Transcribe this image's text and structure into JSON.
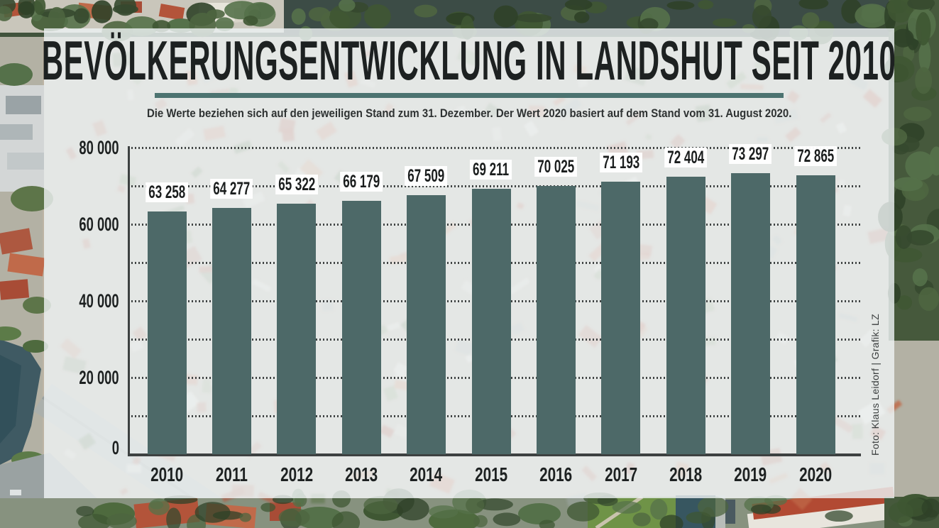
{
  "header": {
    "title": "BEVÖLKERUNGSENTWICKLUNG IN LANDSHUT SEIT 2010",
    "subtitle": "Die Werte beziehen sich auf den jeweiligen Stand zum 31. Dezember. Der Wert 2020 basiert auf dem Stand vom 31. August 2020."
  },
  "credit": "Foto: Klaus Leidorf | Grafik: LZ",
  "colors": {
    "bar": "#4d6968",
    "title_rule": "#4d7370",
    "text": "#1d2121",
    "axis": "#3d4141",
    "grid_dots": "#3f4343",
    "panel_overlay": "rgba(237,242,243,0.82)",
    "value_label_bg": "#ffffff"
  },
  "chart_data": {
    "type": "bar",
    "title": "Bevölkerungsentwicklung in Landshut seit 2010",
    "subtitle": "Die Werte beziehen sich auf den jeweiligen Stand zum 31. Dezember. Der Wert 2020 basiert auf dem Stand vom 31. August 2020.",
    "categories": [
      "2010",
      "2011",
      "2012",
      "2013",
      "2014",
      "2015",
      "2016",
      "2017",
      "2018",
      "2019",
      "2020"
    ],
    "values": [
      63258,
      64277,
      65322,
      66179,
      67509,
      69211,
      70025,
      71193,
      72404,
      73297,
      72865
    ],
    "value_labels": [
      "63 258",
      "64 277",
      "65 322",
      "66 179",
      "67 509",
      "69 211",
      "70 025",
      "71 193",
      "72 404",
      "73 297",
      "72 865"
    ],
    "xlabel": "",
    "ylabel": "",
    "ylim": [
      0,
      80000
    ],
    "ytick_step_gridlines": 10000,
    "yticks": [
      {
        "value": 0,
        "label": "0"
      },
      {
        "value": 20000,
        "label": "20 000"
      },
      {
        "value": 40000,
        "label": "40 000"
      },
      {
        "value": 60000,
        "label": "60 000"
      },
      {
        "value": 80000,
        "label": "80 000"
      }
    ],
    "grid": "horizontal dotted lines every 10 000",
    "legend": "none",
    "bar_color": "#4d6968"
  }
}
